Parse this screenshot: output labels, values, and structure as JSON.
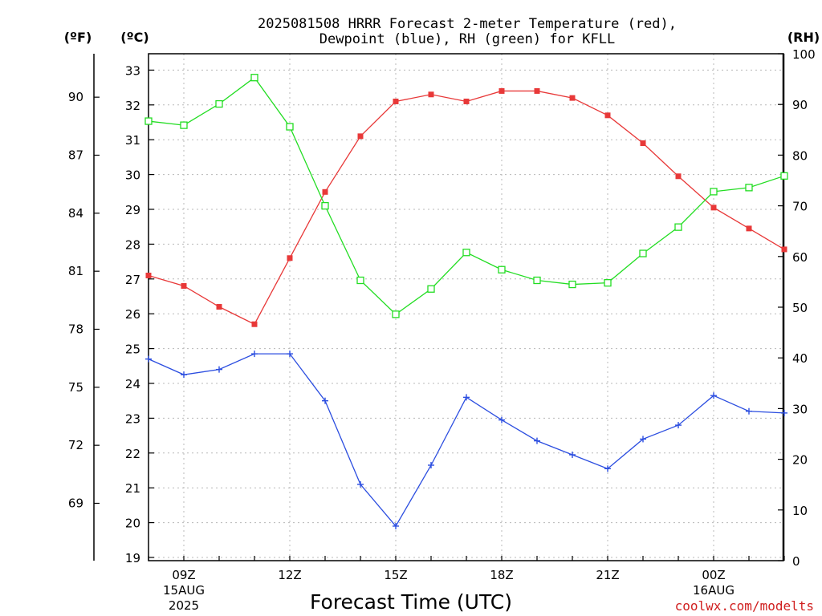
{
  "chart_data": {
    "type": "line",
    "title": "2025081508 HRRR Forecast 2-meter Temperature (red),\nDewpoint (blue), RH (green) for KFLL",
    "xlabel": "Forecast Time (UTC)",
    "credit": "coolwx.com/modelts",
    "units": {
      "fahrenheit": "(ºF)",
      "celsius": "(ºC)",
      "rh": "(RH)"
    },
    "x": [
      "08Z",
      "09Z",
      "10Z",
      "11Z",
      "12Z",
      "13Z",
      "14Z",
      "15Z",
      "16Z",
      "17Z",
      "18Z",
      "19Z",
      "20Z",
      "21Z",
      "22Z",
      "23Z",
      "00Z",
      "01Z",
      "02Z"
    ],
    "x_tick_labels": [
      {
        "x": "09Z",
        "lines": [
          "09Z",
          "15AUG",
          "2025"
        ]
      },
      {
        "x": "12Z",
        "lines": [
          "12Z"
        ]
      },
      {
        "x": "15Z",
        "lines": [
          "15Z"
        ]
      },
      {
        "x": "18Z",
        "lines": [
          "18Z"
        ]
      },
      {
        "x": "21Z",
        "lines": [
          "21Z"
        ]
      },
      {
        "x": "00Z",
        "lines": [
          "00Z",
          "16AUG"
        ]
      }
    ],
    "y_celsius": {
      "ylim": [
        19,
        33.4
      ],
      "ticks": [
        19,
        20,
        21,
        22,
        23,
        24,
        25,
        26,
        27,
        28,
        29,
        30,
        31,
        32,
        33
      ]
    },
    "y_fahrenheit": {
      "ticks": [
        69,
        72,
        75,
        78,
        81,
        84,
        87,
        90
      ]
    },
    "y_rh": {
      "ylim": [
        0,
        100
      ],
      "ticks": [
        0,
        10,
        20,
        30,
        40,
        50,
        60,
        70,
        80,
        90,
        100
      ]
    },
    "grid": true,
    "series": [
      {
        "name": "Temperature",
        "axis": "celsius",
        "color": "#e83838",
        "marker": "filled-square",
        "values": [
          27.1,
          26.8,
          26.2,
          25.7,
          27.6,
          29.5,
          31.1,
          32.1,
          32.3,
          32.1,
          32.4,
          32.4,
          32.2,
          31.7,
          30.9,
          29.95,
          29.05,
          28.45,
          27.85
        ]
      },
      {
        "name": "Dewpoint",
        "axis": "celsius",
        "color": "#2c4ee0",
        "marker": "plus",
        "values": [
          24.7,
          24.25,
          24.4,
          24.85,
          24.85,
          23.5,
          21.1,
          19.9,
          21.65,
          23.6,
          22.95,
          22.35,
          21.95,
          21.55,
          22.4,
          22.8,
          23.65,
          23.2,
          23.15
        ]
      },
      {
        "name": "RH",
        "axis": "rh",
        "color": "#22dd22",
        "marker": "open-square",
        "values": [
          86.7,
          85.9,
          90.1,
          95.3,
          85.6,
          70.0,
          55.3,
          48.6,
          53.6,
          60.8,
          57.4,
          55.3,
          54.5,
          54.8,
          60.6,
          65.8,
          72.8,
          73.6,
          75.9
        ]
      }
    ]
  }
}
